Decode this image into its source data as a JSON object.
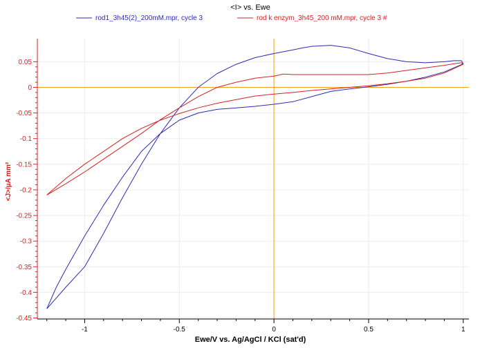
{
  "chart_data": {
    "type": "line",
    "title": "<I> vs. Ewe",
    "xlabel": "Ewe/V vs. Ag/AgCl / KCl (sat'd)",
    "ylabel": "<J>/µA mm²",
    "xlim": [
      -1.25,
      1.03
    ],
    "ylim": [
      -0.452,
      0.095
    ],
    "x_ticks": [
      -1,
      -0.5,
      0,
      0.5,
      1
    ],
    "x_tick_labels": [
      "-1",
      "-0.5",
      "0",
      "0.5",
      "1"
    ],
    "y_ticks": [
      0.05,
      0,
      -0.05,
      -0.1,
      -0.15,
      -0.2,
      -0.25,
      -0.3,
      -0.35,
      -0.4,
      -0.45
    ],
    "y_tick_labels": [
      "0.05",
      "0",
      "-0.05",
      "-0.1",
      "-0.15",
      "-0.2",
      "-0.25",
      "-0.3",
      "-0.35",
      "-0.4",
      "-0.45"
    ],
    "grid": true,
    "legend_position": "top",
    "reference_lines": {
      "x": 0,
      "y": 0,
      "color": "#f0a020"
    },
    "series": [
      {
        "name": "rod1_3h45(2)_200mM.mpr, cycle 3",
        "color": "#2a2ab8",
        "x": [
          -1.2,
          -1.15,
          -1.1,
          -1.0,
          -0.9,
          -0.8,
          -0.7,
          -0.6,
          -0.5,
          -0.4,
          -0.3,
          -0.2,
          -0.1,
          0.0,
          0.1,
          0.2,
          0.3,
          0.4,
          0.5,
          0.6,
          0.7,
          0.8,
          0.9,
          1.0,
          0.99,
          0.95,
          0.9,
          0.8,
          0.7,
          0.6,
          0.5,
          0.4,
          0.3,
          0.2,
          0.15,
          0.1,
          0.0,
          -0.1,
          -0.2,
          -0.3,
          -0.4,
          -0.5,
          -0.6,
          -0.7,
          -0.8,
          -0.9,
          -1.0,
          -1.1,
          -1.2
        ],
        "y": [
          -0.432,
          -0.39,
          -0.355,
          -0.29,
          -0.23,
          -0.175,
          -0.125,
          -0.09,
          -0.064,
          -0.05,
          -0.043,
          -0.04,
          -0.037,
          -0.033,
          -0.028,
          -0.018,
          -0.008,
          -0.003,
          0.001,
          0.006,
          0.012,
          0.02,
          0.03,
          0.046,
          0.052,
          0.052,
          0.05,
          0.048,
          0.05,
          0.056,
          0.066,
          0.077,
          0.082,
          0.08,
          0.077,
          0.073,
          0.066,
          0.058,
          0.045,
          0.027,
          0.0,
          -0.04,
          -0.09,
          -0.15,
          -0.215,
          -0.285,
          -0.35,
          -0.39,
          -0.432
        ]
      },
      {
        "name": "rod k enzym_3h45_200 mM.mpr, cycle 3 #",
        "color": "#d42020",
        "x": [
          -1.2,
          -1.1,
          -1.0,
          -0.9,
          -0.8,
          -0.7,
          -0.6,
          -0.5,
          -0.4,
          -0.3,
          -0.2,
          -0.1,
          0.0,
          0.1,
          0.2,
          0.3,
          0.4,
          0.5,
          0.6,
          0.7,
          0.8,
          0.9,
          1.0,
          0.99,
          0.95,
          0.9,
          0.8,
          0.7,
          0.6,
          0.5,
          0.4,
          0.3,
          0.2,
          0.1,
          0.05,
          0.0,
          -0.1,
          -0.2,
          -0.3,
          -0.4,
          -0.5,
          -0.6,
          -0.7,
          -0.8,
          -0.9,
          -1.0,
          -1.1,
          -1.2
        ],
        "y": [
          -0.21,
          -0.178,
          -0.15,
          -0.125,
          -0.1,
          -0.08,
          -0.064,
          -0.051,
          -0.04,
          -0.031,
          -0.024,
          -0.017,
          -0.013,
          -0.01,
          -0.006,
          -0.003,
          0.0,
          0.003,
          0.007,
          0.012,
          0.018,
          0.028,
          0.045,
          0.048,
          0.046,
          0.043,
          0.038,
          0.033,
          0.028,
          0.025,
          0.025,
          0.025,
          0.025,
          0.025,
          0.026,
          0.022,
          0.018,
          0.01,
          0.0,
          -0.018,
          -0.04,
          -0.063,
          -0.09,
          -0.115,
          -0.14,
          -0.165,
          -0.188,
          -0.21
        ]
      }
    ]
  }
}
